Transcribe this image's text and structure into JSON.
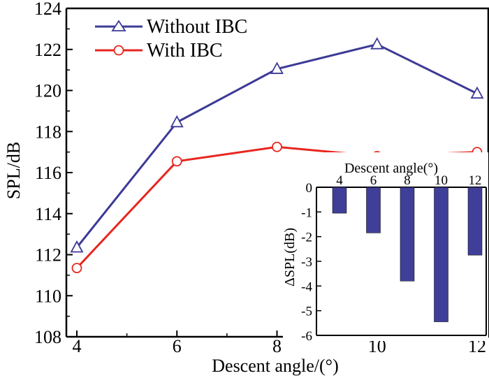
{
  "colors": {
    "without": "#3c3a96",
    "with": "#e8261f",
    "bar": "#3f3f99",
    "axis": "#000000"
  },
  "chart_data": [
    {
      "type": "line",
      "xlabel": "Descent angle/(°)",
      "ylabel": "SPL/dB",
      "xlim": [
        4,
        12
      ],
      "ylim": [
        108,
        124
      ],
      "xticks": [
        "4",
        "6",
        "8",
        "10",
        "12"
      ],
      "yticks": [
        "108",
        "110",
        "112",
        "114",
        "116",
        "118",
        "120",
        "122",
        "124"
      ],
      "x": [
        4,
        6,
        8,
        10,
        12
      ],
      "legend_position": "top-left",
      "series": [
        {
          "name": "Without IBC",
          "marker": "triangle",
          "values": [
            112.35,
            118.45,
            121.05,
            122.25,
            119.85
          ]
        },
        {
          "name": "With IBC",
          "marker": "circle",
          "values": [
            111.35,
            116.55,
            117.25,
            116.8,
            117.0
          ]
        }
      ]
    },
    {
      "type": "bar",
      "xlabel": "Descent angle(°)",
      "ylabel": "ΔSPL(dB)",
      "categories": [
        "4",
        "6",
        "8",
        "10",
        "12"
      ],
      "ylim": [
        -6,
        0
      ],
      "yticks": [
        "0",
        "-1",
        "-2",
        "-3",
        "-4",
        "-5",
        "-6"
      ],
      "xaxis_position": "top",
      "values": [
        -1.05,
        -1.85,
        -3.8,
        -5.45,
        -2.75
      ]
    }
  ]
}
